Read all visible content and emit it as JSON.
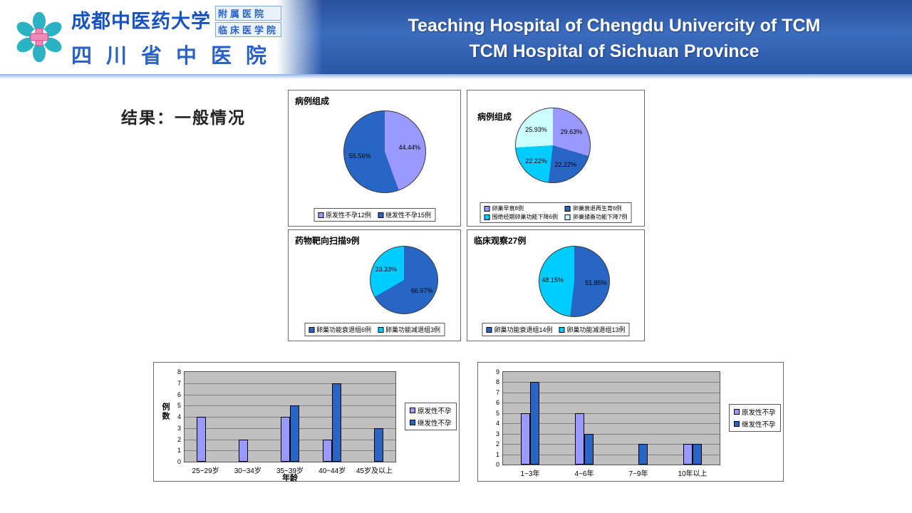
{
  "header": {
    "cn_name": "成都中医药大学",
    "cn_sub1": "附属医院",
    "cn_sub2": "临床医学院",
    "cn_name2": "四川省中医院",
    "en_line1": "Teaching Hospital of Chengdu Univercity of TCM",
    "en_line2": "TCM Hospital of Sichuan Province"
  },
  "slide": {
    "title": "结果：一般情况"
  },
  "colors": {
    "header_blue": "#2a57a8",
    "purple": "#9999FF",
    "blue": "#2766C4",
    "cyan": "#00CCFF",
    "pale_cyan": "#CCFFFF",
    "plot_bg": "#C0C0C0"
  },
  "chart_data": [
    {
      "type": "pie",
      "title": "病例组成",
      "slices": [
        {
          "label": "原发性不孕12例",
          "value": 44.44,
          "display": "44.44%",
          "color": "#9999FF"
        },
        {
          "label": "继发性不孕15例",
          "value": 55.56,
          "display": "55.56%",
          "color": "#2766C4"
        }
      ]
    },
    {
      "type": "pie",
      "title": "病例组成",
      "legend_columns": 2,
      "slices": [
        {
          "label": "卵巢早衰8例",
          "value": 29.63,
          "display": "29.63%",
          "color": "#9999FF"
        },
        {
          "label": "卵巢衰退再生育6例",
          "value": 22.22,
          "display": "22.22%",
          "color": "#2766C4"
        },
        {
          "label": "围绝经期卵巢功能下降6例",
          "value": 22.22,
          "display": "22.22%",
          "color": "#00CCFF"
        },
        {
          "label": "卵巢储备功能下降7例",
          "value": 25.93,
          "display": "25.93%",
          "color": "#CCFFFF"
        }
      ]
    },
    {
      "type": "pie",
      "title": "药物靶向扫描9例",
      "slices": [
        {
          "label": "卵巢功能衰退组6例",
          "value": 66.67,
          "display": "66.67%",
          "color": "#2766C4"
        },
        {
          "label": "卵巢功能减退组3例",
          "value": 33.33,
          "display": "33.33%",
          "color": "#00CCFF"
        }
      ]
    },
    {
      "type": "pie",
      "title": "临床观察27例",
      "slices": [
        {
          "label": "卵巢功能衰退组14例",
          "value": 51.85,
          "display": "51.85%",
          "color": "#2766C4"
        },
        {
          "label": "卵巢功能减退组13例",
          "value": 48.15,
          "display": "48.15%",
          "color": "#00CCFF"
        }
      ]
    },
    {
      "type": "bar",
      "ylabel": "例数",
      "xlabel": "年龄",
      "ymax": 8,
      "categories": [
        "25~29岁",
        "30~34岁",
        "35~39岁",
        "40~44岁",
        "45岁及以上"
      ],
      "series": [
        {
          "name": "原发性不孕",
          "color": "#9999FF",
          "values": [
            4,
            2,
            4,
            2,
            0
          ]
        },
        {
          "name": "继发性不孕",
          "color": "#2766C4",
          "values": [
            0,
            0,
            5,
            7,
            3
          ]
        }
      ]
    },
    {
      "type": "bar",
      "ylabel": "",
      "xlabel": "",
      "ymax": 9,
      "categories": [
        "1~3年",
        "4~6年",
        "7~9年",
        "10年以上"
      ],
      "series": [
        {
          "name": "原发性不孕",
          "color": "#9999FF",
          "values": [
            5,
            5,
            0,
            2
          ]
        },
        {
          "name": "继发性不孕",
          "color": "#2766C4",
          "values": [
            8,
            3,
            2,
            2
          ]
        }
      ]
    }
  ]
}
